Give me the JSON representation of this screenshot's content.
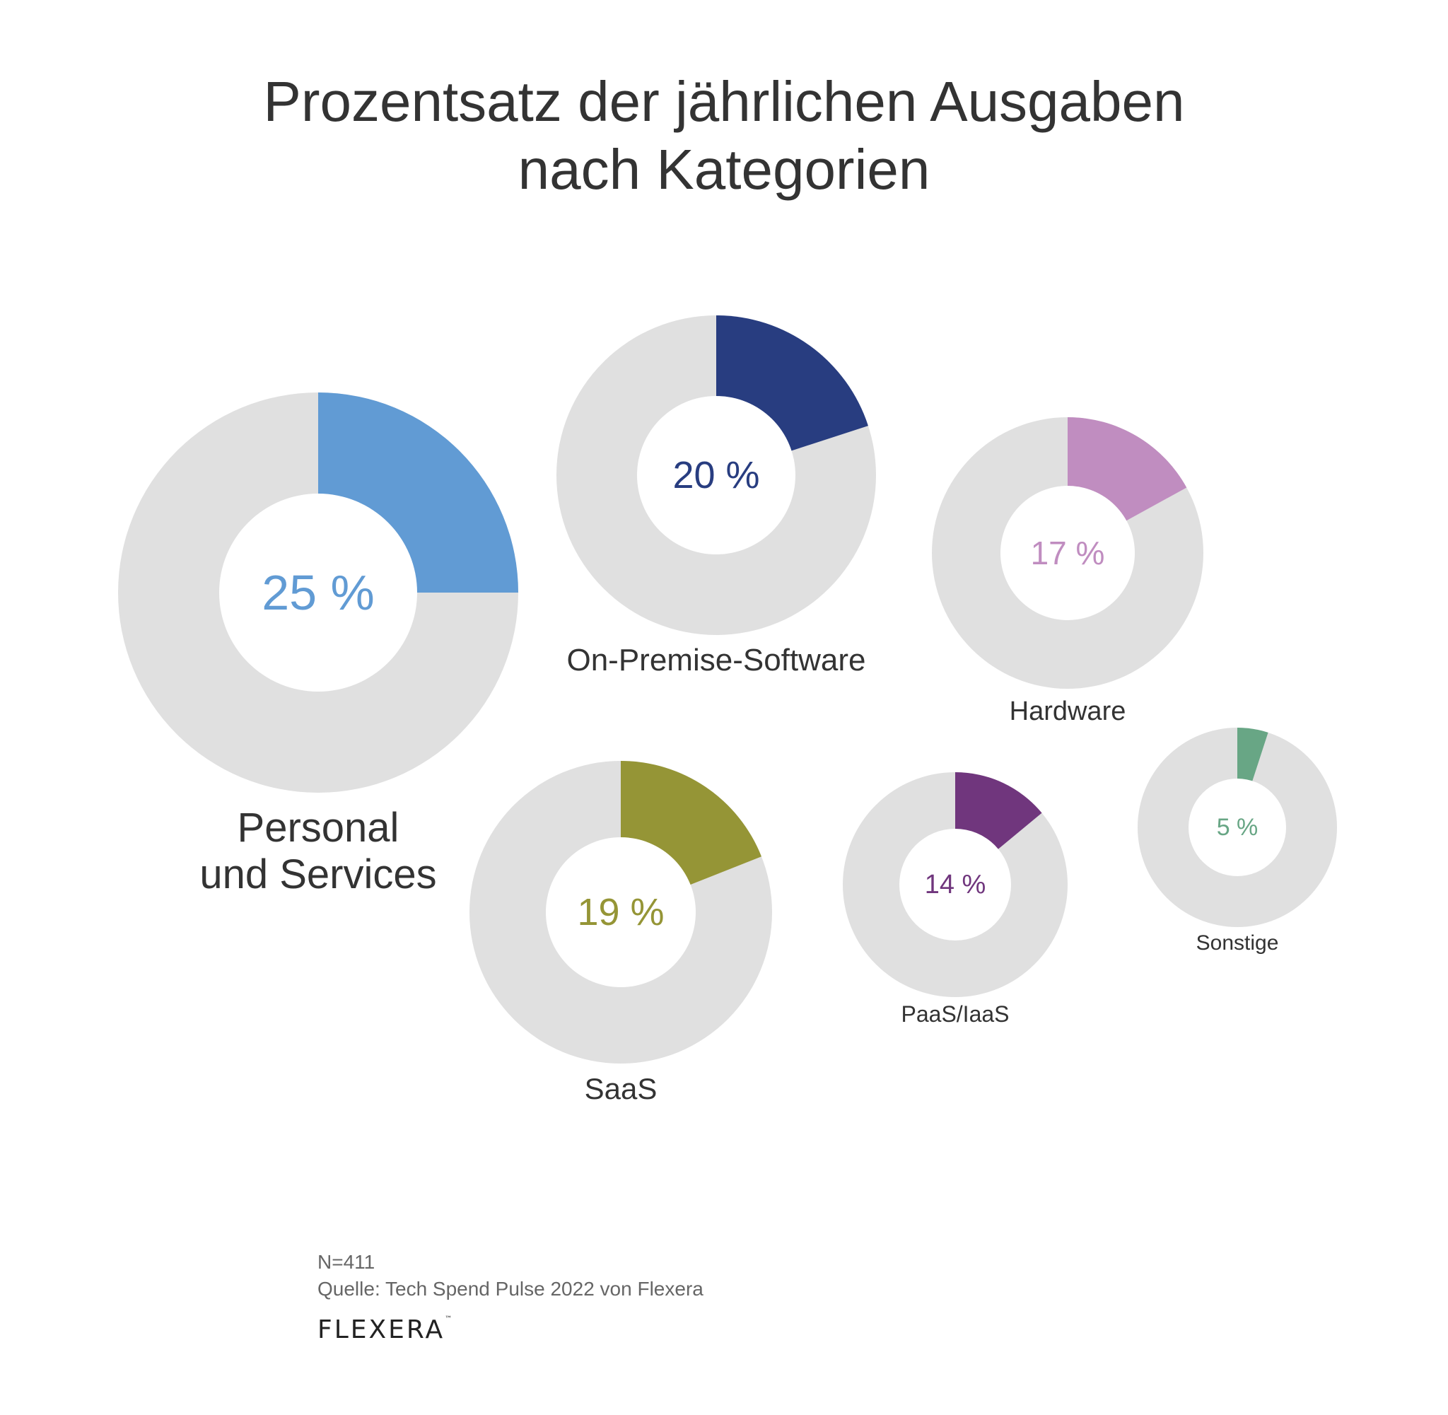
{
  "title_line1": "Prozentsatz der jährlichen Ausgaben",
  "title_line2": "nach Kategorien",
  "footnote": {
    "n": "N=411",
    "source": "Quelle: Tech Spend Pulse 2022 von Flexera"
  },
  "logo_text": "Flexera",
  "colors": {
    "track": "#E0E0E0",
    "text": "#333333"
  },
  "chart_data": {
    "type": "pie",
    "title": "Prozentsatz der jährlichen Ausgaben nach Kategorien",
    "series": [
      {
        "name": "Personal und Services",
        "label": "Personal\nund Services",
        "value": 25,
        "value_label": "25 %",
        "color": "#619BD4"
      },
      {
        "name": "On-Premise-Software",
        "label": "On-Premise-Software",
        "value": 20,
        "value_label": "20 %",
        "color": "#283D80"
      },
      {
        "name": "Hardware",
        "label": "Hardware",
        "value": 17,
        "value_label": "17 %",
        "color": "#C08DC0"
      },
      {
        "name": "SaaS",
        "label": "SaaS",
        "value": 19,
        "value_label": "19 %",
        "color": "#959536"
      },
      {
        "name": "PaaS/IaaS",
        "label": "PaaS/IaaS",
        "value": 14,
        "value_label": "14 %",
        "color": "#70367D"
      },
      {
        "name": "Sonstige",
        "label": "Sonstige",
        "value": 5,
        "value_label": "5 %",
        "color": "#68A685"
      }
    ]
  }
}
